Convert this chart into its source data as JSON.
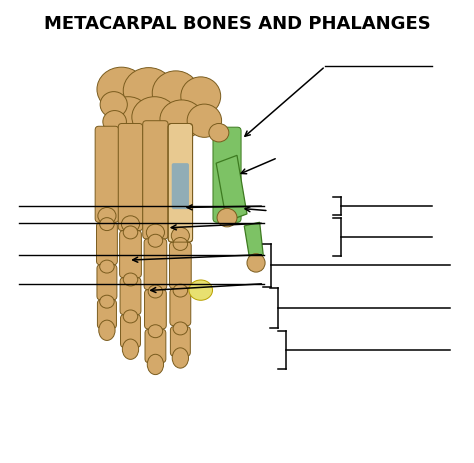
{
  "title": "METACARPAL BONES AND PHALANGES",
  "title_fontsize": 13,
  "title_fontweight": "bold",
  "bg_color": "#ffffff",
  "fig_width": 4.74,
  "fig_height": 4.63,
  "dpi": 100,
  "bone_color": "#D4A96A",
  "bone_color2": "#E8C990",
  "green_highlight": "#7DC265",
  "blue_highlight": "#7BA7C0",
  "yellow_highlight": "#E8E070"
}
